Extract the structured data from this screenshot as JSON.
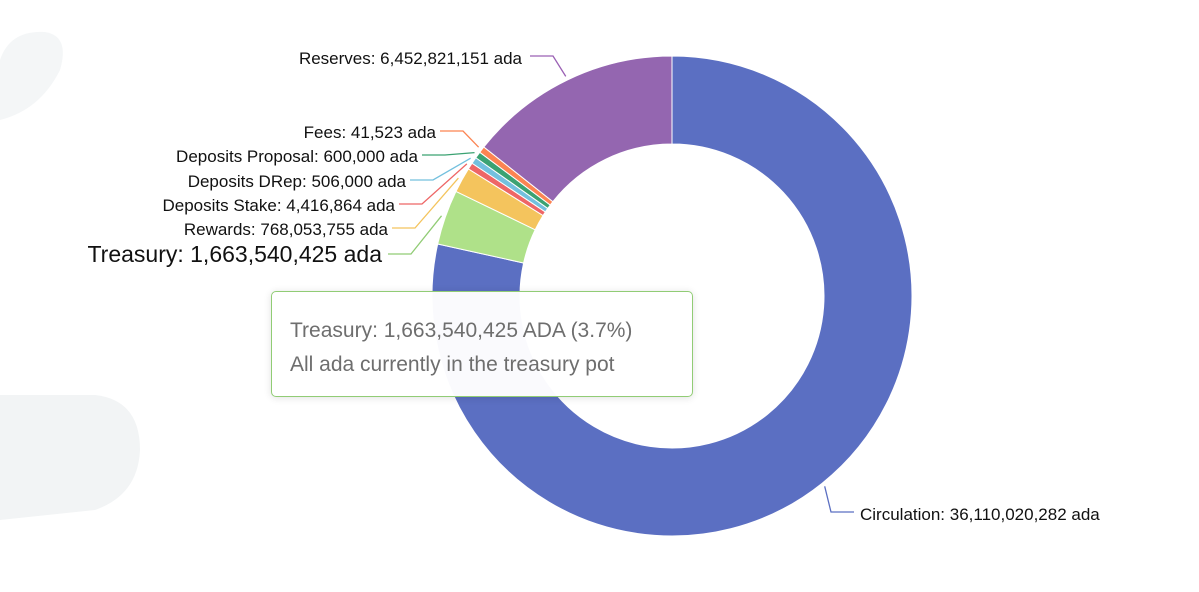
{
  "chart_data": {
    "type": "pie",
    "variant": "donut",
    "unit": "ada",
    "slices": [
      {
        "name": "Circulation",
        "value": 36110020282,
        "label": "Circulation: 36,110,020,282 ada",
        "color": "#5b6fc2"
      },
      {
        "name": "Treasury",
        "value": 1663540425,
        "label": "Treasury: 1,663,540,425 ada",
        "color": "#5b6fc2",
        "emphasis": true
      },
      {
        "name": "Rewards",
        "value": 768053755,
        "label": "Rewards: 768,053,755 ada",
        "color": "#afe189"
      },
      {
        "name": "Deposits Stake",
        "value": 4416864,
        "label": "Deposits Stake: 4,416,864 ada",
        "color": "#ee6666"
      },
      {
        "name": "Deposits DRep",
        "value": 506000,
        "label": "Deposits DRep: 506,000 ada",
        "color": "#73c0de"
      },
      {
        "name": "Deposits Proposal",
        "value": 600000,
        "label": "Deposits Proposal: 600,000 ada",
        "color": "#3ba272"
      },
      {
        "name": "Fees",
        "value": 41523,
        "label": "Fees: 41,523 ada",
        "color": "#fc8452"
      },
      {
        "name": "Reserves",
        "value": 6452821151,
        "label": "Reserves: 6,452,821,151 ada",
        "color": "#9466b0"
      }
    ],
    "fill_overrides": {
      "Rewards": "#f4c45d",
      "Treasury": "#afe189"
    },
    "label_line_colors": {
      "Circulation": "#5b6fc2",
      "Treasury": "#91cc75",
      "Rewards": "#f4c45d",
      "Deposits Stake": "#ee6666",
      "Deposits DRep": "#73c0de",
      "Deposits Proposal": "#3ba272",
      "Fees": "#fc8452",
      "Reserves": "#9a60b4"
    }
  },
  "tooltip": {
    "line1": "Treasury: 1,663,540,425 ADA (3.7%)",
    "line2": "All ada currently in the treasury pot",
    "border_color": "#91cc75"
  }
}
